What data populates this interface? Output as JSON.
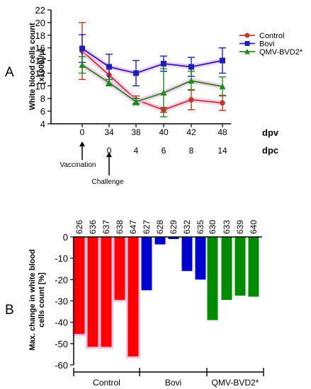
{
  "panels": {
    "a_label": "A",
    "b_label": "B"
  },
  "chart_data": [
    {
      "type": "line",
      "panel": "A",
      "ylabel_line1": "White blood cells count",
      "ylabel_line2": "[x1000]/µl",
      "ylim": [
        4,
        22
      ],
      "yticks": [
        4,
        6,
        8,
        10,
        12,
        14,
        16,
        18,
        20,
        22
      ],
      "categories_dpv": [
        "0",
        "34",
        "38",
        "40",
        "42",
        "48"
      ],
      "categories_dpc": [
        "",
        "0",
        "4",
        "6",
        "8",
        "14"
      ],
      "dpv_label": "dpv",
      "dpc_label": "dpc",
      "annotations": [
        {
          "text": "Vaccination",
          "category_index": 0
        },
        {
          "text": "Challenge",
          "category_index": 1
        }
      ],
      "legend_position": "top-right",
      "series": [
        {
          "name": "Control",
          "color": "#c0392b",
          "marker": "circle",
          "values": [
            15.5,
            11.7,
            7.8,
            6.2,
            7.8,
            7.3
          ],
          "errors": [
            4.5,
            1.3,
            0.6,
            0.4,
            1.6,
            1.2
          ]
        },
        {
          "name": "Bovi",
          "color": "#1f1fb4",
          "marker": "square",
          "values": [
            15.9,
            13.0,
            12.0,
            13.5,
            13.0,
            14.0
          ],
          "errors": [
            2.2,
            2.0,
            2.0,
            1.2,
            1.5,
            2.0
          ]
        },
        {
          "name": "QMV-BVD2*",
          "color": "#1e8a1e",
          "marker": "triangle",
          "values": [
            13.3,
            10.5,
            7.5,
            8.9,
            10.8,
            9.9
          ],
          "errors": [
            1.3,
            0.5,
            0.5,
            3.8,
            1.5,
            1.5
          ]
        }
      ]
    },
    {
      "type": "bar",
      "panel": "B",
      "ylabel_line1": "Max. change in white blood",
      "ylabel_line2": "cells count [%]",
      "ylim": [
        -60,
        0
      ],
      "yticks": [
        0,
        -10,
        -20,
        -30,
        -40,
        -50,
        -60
      ],
      "categories": [
        "626",
        "636",
        "637",
        "638",
        "647",
        "627",
        "628",
        "629",
        "632",
        "635",
        "630",
        "633",
        "639",
        "640"
      ],
      "values": [
        -45.5,
        -51.5,
        -51.5,
        -29.5,
        -56,
        -25,
        -3.5,
        -1,
        -16,
        -20,
        -39,
        -29.5,
        -27.5,
        -28
      ],
      "groups": [
        {
          "name": "Control",
          "color": "#ff0000",
          "start": 0,
          "count": 5
        },
        {
          "name": "Bovi",
          "color": "#0000cc",
          "start": 5,
          "count": 5
        },
        {
          "name": "QMV-BVD2*",
          "color": "#008a00",
          "start": 10,
          "count": 4
        }
      ],
      "highlight_color": "#f5c6e6"
    }
  ]
}
